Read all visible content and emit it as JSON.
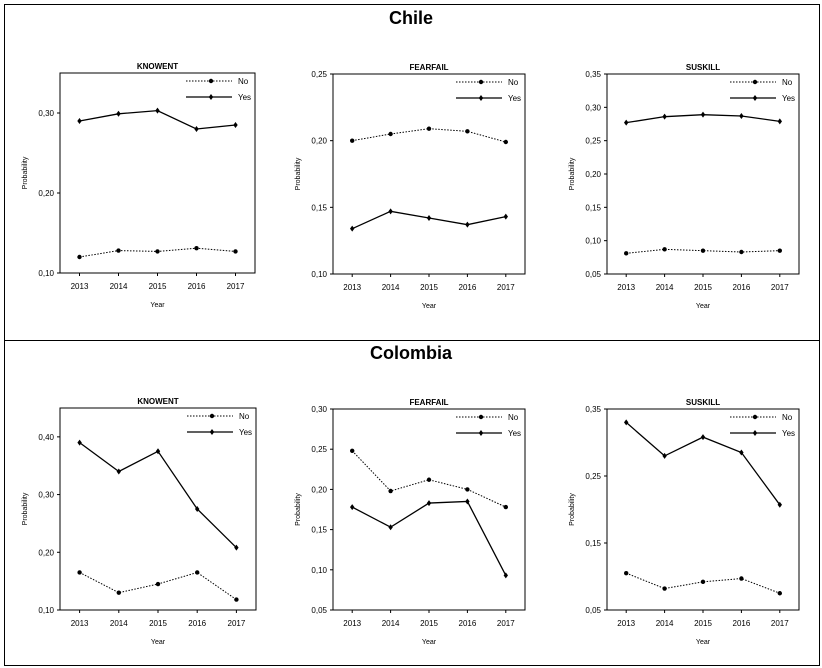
{
  "page": {
    "sections": [
      {
        "country": "Chile"
      },
      {
        "country": "Colombia"
      }
    ]
  },
  "chart_data": [
    {
      "type": "line",
      "country": "Chile",
      "title": "KNOWENT",
      "xlabel": "Year",
      "ylabel": "Probability",
      "categories": [
        "2013",
        "2014",
        "2015",
        "2016",
        "2017"
      ],
      "ylim": [
        0.1,
        0.35
      ],
      "yticks": [
        0.1,
        0.2,
        0.3
      ],
      "ytick_labels": [
        "0,10",
        "0,20",
        "0,30"
      ],
      "series": [
        {
          "name": "No",
          "style": "dotted",
          "marker": "circle",
          "values": [
            0.12,
            0.128,
            0.127,
            0.131,
            0.127
          ]
        },
        {
          "name": "Yes",
          "style": "solid",
          "marker": "diamond",
          "values": [
            0.29,
            0.299,
            0.303,
            0.28,
            0.285
          ]
        }
      ]
    },
    {
      "type": "line",
      "country": "Chile",
      "title": "FEARFAIL",
      "xlabel": "Year",
      "ylabel": "Probability",
      "categories": [
        "2013",
        "2014",
        "2015",
        "2016",
        "2017"
      ],
      "ylim": [
        0.1,
        0.25
      ],
      "yticks": [
        0.1,
        0.15,
        0.2,
        0.25
      ],
      "ytick_labels": [
        "0,10",
        "0,15",
        "0,20",
        "0,25"
      ],
      "series": [
        {
          "name": "No",
          "style": "dotted",
          "marker": "circle",
          "values": [
            0.2,
            0.205,
            0.209,
            0.207,
            0.199
          ]
        },
        {
          "name": "Yes",
          "style": "solid",
          "marker": "diamond",
          "values": [
            0.134,
            0.147,
            0.142,
            0.137,
            0.143
          ]
        }
      ]
    },
    {
      "type": "line",
      "country": "Chile",
      "title": "SUSKILL",
      "xlabel": "Year",
      "ylabel": "Probability",
      "categories": [
        "2013",
        "2014",
        "2015",
        "2016",
        "2017"
      ],
      "ylim": [
        0.05,
        0.35
      ],
      "yticks": [
        0.05,
        0.1,
        0.15,
        0.2,
        0.25,
        0.3,
        0.35
      ],
      "ytick_labels": [
        "0,05",
        "0,10",
        "0,15",
        "0,20",
        "0,25",
        "0,30",
        "0,35"
      ],
      "series": [
        {
          "name": "No",
          "style": "dotted",
          "marker": "circle",
          "values": [
            0.081,
            0.087,
            0.085,
            0.083,
            0.085
          ]
        },
        {
          "name": "Yes",
          "style": "solid",
          "marker": "diamond",
          "values": [
            0.277,
            0.286,
            0.289,
            0.287,
            0.279
          ]
        }
      ]
    },
    {
      "type": "line",
      "country": "Colombia",
      "title": "KNOWENT",
      "xlabel": "Year",
      "ylabel": "Probability",
      "categories": [
        "2013",
        "2014",
        "2015",
        "2016",
        "2017"
      ],
      "ylim": [
        0.1,
        0.45
      ],
      "yticks": [
        0.1,
        0.2,
        0.3,
        0.4
      ],
      "ytick_labels": [
        "0,10",
        "0,20",
        "0,30",
        "0,40"
      ],
      "series": [
        {
          "name": "No",
          "style": "dotted",
          "marker": "circle",
          "values": [
            0.165,
            0.13,
            0.145,
            0.165,
            0.118
          ]
        },
        {
          "name": "Yes",
          "style": "solid",
          "marker": "diamond",
          "values": [
            0.39,
            0.34,
            0.375,
            0.275,
            0.208
          ]
        }
      ]
    },
    {
      "type": "line",
      "country": "Colombia",
      "title": "FEARFAIL",
      "xlabel": "Year",
      "ylabel": "Probability",
      "categories": [
        "2013",
        "2014",
        "2015",
        "2016",
        "2017"
      ],
      "ylim": [
        0.05,
        0.3
      ],
      "yticks": [
        0.05,
        0.1,
        0.15,
        0.2,
        0.25,
        0.3
      ],
      "ytick_labels": [
        "0,05",
        "0,10",
        "0,15",
        "0,20",
        "0,25",
        "0,30"
      ],
      "series": [
        {
          "name": "No",
          "style": "dotted",
          "marker": "circle",
          "values": [
            0.248,
            0.198,
            0.212,
            0.2,
            0.178
          ]
        },
        {
          "name": "Yes",
          "style": "solid",
          "marker": "diamond",
          "values": [
            0.178,
            0.153,
            0.183,
            0.185,
            0.093
          ]
        }
      ]
    },
    {
      "type": "line",
      "country": "Colombia",
      "title": "SUSKILL",
      "xlabel": "Year",
      "ylabel": "Probability",
      "categories": [
        "2013",
        "2014",
        "2015",
        "2016",
        "2017"
      ],
      "ylim": [
        0.05,
        0.35
      ],
      "yticks": [
        0.05,
        0.15,
        0.25,
        0.35
      ],
      "ytick_labels": [
        "0,05",
        "0,15",
        "0,25",
        "0,35"
      ],
      "series": [
        {
          "name": "No",
          "style": "dotted",
          "marker": "circle",
          "values": [
            0.105,
            0.082,
            0.092,
            0.097,
            0.075
          ]
        },
        {
          "name": "Yes",
          "style": "solid",
          "marker": "diamond",
          "values": [
            0.33,
            0.28,
            0.308,
            0.285,
            0.207
          ]
        }
      ]
    }
  ]
}
